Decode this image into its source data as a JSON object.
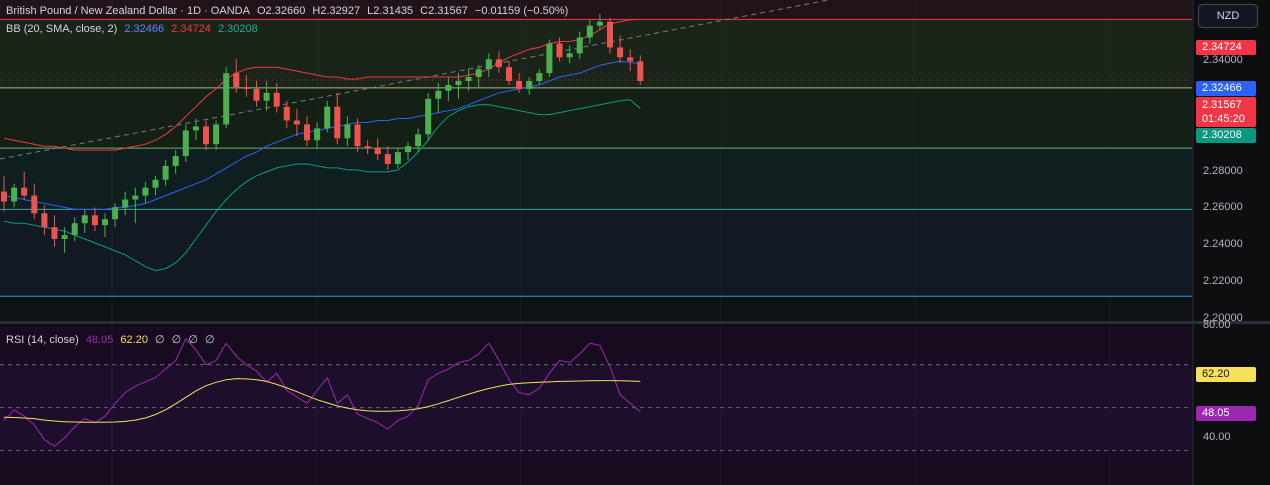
{
  "header": {
    "symbol_title": "British Pound / New Zealand Dollar · 1D · OANDA",
    "open": "O2.32660",
    "high": "H2.32927",
    "low": "L2.31435",
    "close": "C2.31567",
    "change": "−0.01159 (−0.50%)"
  },
  "bb_legend": {
    "label": "BB (20, SMA, close, 2)",
    "basis": "2.32466",
    "upper": "2.34724",
    "lower": "2.30208"
  },
  "rsi_legend": {
    "label": "RSI (14, close)",
    "rsi": "48.05",
    "ma": "62.20",
    "extra": [
      "∅",
      "∅",
      "∅",
      "∅"
    ]
  },
  "currency_button": "NZD",
  "price_axis": {
    "ticks": [
      "2.34000",
      "2.28000",
      "2.26000",
      "2.24000",
      "2.22000",
      "2.20000"
    ],
    "tags": {
      "upper": "2.34724",
      "basis": "2.32466",
      "last": "2.31567",
      "countdown": "01:45:20",
      "lower": "2.30208"
    }
  },
  "rsi_axis": {
    "ticks": [
      "80.00",
      "40.00"
    ],
    "tags": {
      "ma": "62.20",
      "rsi": "48.05"
    }
  },
  "colors": {
    "up": "#26a69a",
    "up_body": "#4caf50",
    "down": "#ef5350",
    "upper_band": "#f23645",
    "basis": "#2962ff",
    "lower_band": "#089981",
    "rsi": "#9c27b0",
    "rsi_ma": "#f5e05a"
  },
  "chart_data": [
    {
      "type": "candlestick",
      "title": "British Pound / New Zealand Dollar · 1D · OANDA",
      "ylim": [
        2.195,
        2.357
      ],
      "candles": [
        [
          2.26,
          2.268,
          2.25,
          2.255
        ],
        [
          2.255,
          2.264,
          2.252,
          2.262
        ],
        [
          2.262,
          2.27,
          2.256,
          2.258
        ],
        [
          2.258,
          2.264,
          2.246,
          2.249
        ],
        [
          2.249,
          2.253,
          2.238,
          2.242
        ],
        [
          2.242,
          2.248,
          2.232,
          2.236
        ],
        [
          2.236,
          2.242,
          2.229,
          2.238
        ],
        [
          2.238,
          2.247,
          2.235,
          2.244
        ],
        [
          2.244,
          2.251,
          2.239,
          2.248
        ],
        [
          2.248,
          2.252,
          2.24,
          2.243
        ],
        [
          2.243,
          2.249,
          2.237,
          2.246
        ],
        [
          2.246,
          2.254,
          2.242,
          2.252
        ],
        [
          2.252,
          2.26,
          2.248,
          2.256
        ],
        [
          2.256,
          2.262,
          2.244,
          2.258
        ],
        [
          2.258,
          2.265,
          2.254,
          2.262
        ],
        [
          2.262,
          2.268,
          2.258,
          2.266
        ],
        [
          2.266,
          2.276,
          2.263,
          2.273
        ],
        [
          2.273,
          2.281,
          2.269,
          2.278
        ],
        [
          2.278,
          2.294,
          2.275,
          2.291
        ],
        [
          2.291,
          2.297,
          2.286,
          2.293
        ],
        [
          2.293,
          2.296,
          2.281,
          2.284
        ],
        [
          2.284,
          2.296,
          2.281,
          2.294
        ],
        [
          2.294,
          2.323,
          2.292,
          2.32
        ],
        [
          2.32,
          2.327,
          2.31,
          2.313
        ],
        [
          2.313,
          2.319,
          2.308,
          2.312
        ],
        [
          2.312,
          2.316,
          2.303,
          2.306
        ],
        [
          2.306,
          2.316,
          2.301,
          2.31
        ],
        [
          2.31,
          2.315,
          2.3,
          2.303
        ],
        [
          2.303,
          2.306,
          2.292,
          2.296
        ],
        [
          2.296,
          2.302,
          2.288,
          2.294
        ],
        [
          2.294,
          2.298,
          2.283,
          2.286
        ],
        [
          2.286,
          2.295,
          2.282,
          2.292
        ],
        [
          2.292,
          2.306,
          2.29,
          2.303
        ],
        [
          2.303,
          2.31,
          2.284,
          2.287
        ],
        [
          2.287,
          2.298,
          2.283,
          2.294
        ],
        [
          2.294,
          2.297,
          2.28,
          2.283
        ],
        [
          2.283,
          2.286,
          2.279,
          2.282
        ],
        [
          2.282,
          2.287,
          2.276,
          2.279
        ],
        [
          2.279,
          2.283,
          2.271,
          2.274
        ],
        [
          2.274,
          2.282,
          2.272,
          2.28
        ],
        [
          2.28,
          2.285,
          2.276,
          2.283
        ],
        [
          2.283,
          2.292,
          2.28,
          2.289
        ],
        [
          2.289,
          2.31,
          2.286,
          2.307
        ],
        [
          2.307,
          2.315,
          2.3,
          2.311
        ],
        [
          2.311,
          2.318,
          2.306,
          2.314
        ],
        [
          2.314,
          2.32,
          2.307,
          2.316
        ],
        [
          2.316,
          2.322,
          2.311,
          2.318
        ],
        [
          2.318,
          2.324,
          2.313,
          2.322
        ],
        [
          2.322,
          2.33,
          2.318,
          2.327
        ],
        [
          2.327,
          2.331,
          2.32,
          2.323
        ],
        [
          2.323,
          2.326,
          2.314,
          2.316
        ],
        [
          2.316,
          2.32,
          2.31,
          2.312
        ],
        [
          2.312,
          2.318,
          2.309,
          2.316
        ],
        [
          2.316,
          2.322,
          2.314,
          2.32
        ],
        [
          2.32,
          2.337,
          2.318,
          2.335
        ],
        [
          2.335,
          2.338,
          2.326,
          2.328
        ],
        [
          2.328,
          2.334,
          2.325,
          2.33
        ],
        [
          2.33,
          2.341,
          2.327,
          2.338
        ],
        [
          2.338,
          2.347,
          2.335,
          2.344
        ],
        [
          2.344,
          2.35,
          2.342,
          2.346
        ],
        [
          2.346,
          2.348,
          2.33,
          2.333
        ],
        [
          2.333,
          2.339,
          2.325,
          2.328
        ],
        [
          2.328,
          2.332,
          2.321,
          2.326
        ],
        [
          2.326,
          2.329,
          2.314,
          2.316
        ]
      ],
      "bb_upper": [
        2.287,
        2.286,
        2.285,
        2.284,
        2.283,
        2.283,
        2.282,
        2.281,
        2.281,
        2.281,
        2.281,
        2.281,
        2.282,
        2.283,
        2.284,
        2.286,
        2.289,
        2.293,
        2.298,
        2.303,
        2.308,
        2.312,
        2.317,
        2.32,
        2.322,
        2.323,
        2.323,
        2.323,
        2.322,
        2.321,
        2.32,
        2.319,
        2.318,
        2.318,
        2.317,
        2.317,
        2.318,
        2.318,
        2.318,
        2.318,
        2.318,
        2.318,
        2.318,
        2.318,
        2.318,
        2.318,
        2.319,
        2.32,
        2.322,
        2.325,
        2.328,
        2.33,
        2.332,
        2.333,
        2.335,
        2.336,
        2.336,
        2.337,
        2.339,
        2.342,
        2.345,
        2.346,
        2.347,
        2.3472
      ],
      "bb_basis": [
        2.258,
        2.257,
        2.256,
        2.255,
        2.254,
        2.253,
        2.252,
        2.251,
        2.251,
        2.251,
        2.251,
        2.252,
        2.252,
        2.253,
        2.254,
        2.256,
        2.258,
        2.26,
        2.262,
        2.264,
        2.266,
        2.269,
        2.272,
        2.275,
        2.278,
        2.28,
        2.283,
        2.285,
        2.287,
        2.289,
        2.29,
        2.291,
        2.292,
        2.293,
        2.294,
        2.295,
        2.295,
        2.296,
        2.296,
        2.297,
        2.297,
        2.298,
        2.299,
        2.3,
        2.301,
        2.302,
        2.304,
        2.306,
        2.308,
        2.31,
        2.311,
        2.312,
        2.313,
        2.314,
        2.316,
        2.318,
        2.319,
        2.32,
        2.322,
        2.324,
        2.325,
        2.326,
        2.3255,
        2.32466
      ],
      "bb_lower": [
        2.245,
        2.244,
        2.244,
        2.243,
        2.242,
        2.241,
        2.24,
        2.238,
        2.236,
        2.234,
        2.232,
        2.23,
        2.228,
        2.225,
        2.222,
        2.22,
        2.221,
        2.224,
        2.229,
        2.236,
        2.243,
        2.25,
        2.256,
        2.261,
        2.265,
        2.268,
        2.27,
        2.272,
        2.273,
        2.274,
        2.274,
        2.273,
        2.272,
        2.272,
        2.271,
        2.271,
        2.27,
        2.27,
        2.27,
        2.271,
        2.275,
        2.28,
        2.286,
        2.293,
        2.298,
        2.301,
        2.303,
        2.304,
        2.304,
        2.303,
        2.302,
        2.301,
        2.3,
        2.299,
        2.299,
        2.3,
        2.301,
        2.302,
        2.303,
        2.304,
        2.305,
        2.306,
        2.3065,
        2.30208
      ]
    },
    {
      "type": "line",
      "title": "RSI (14, close)",
      "ylim": [
        14,
        88
      ],
      "series": [
        {
          "name": "RSI",
          "values": [
            44,
            49,
            46,
            42,
            35,
            32,
            36,
            41,
            45,
            43,
            46,
            52,
            57,
            60,
            62,
            64,
            68,
            72,
            82,
            77,
            70,
            72,
            80,
            74,
            70,
            67,
            62,
            66,
            58,
            55,
            52,
            58,
            64,
            52,
            56,
            47,
            45,
            43,
            40,
            44,
            46,
            51,
            63,
            66,
            68,
            71,
            72,
            75,
            80,
            72,
            63,
            57,
            56,
            59,
            66,
            72,
            71,
            75,
            80,
            79,
            69,
            56,
            52,
            48.05
          ]
        },
        {
          "name": "RSI MA",
          "values": [
            45.5,
            45.4,
            45.2,
            44.9,
            44.2,
            43.8,
            43.4,
            43.3,
            43.2,
            43.2,
            43.2,
            43.3,
            43.6,
            44.2,
            45.2,
            46.8,
            49.0,
            51.8,
            54.8,
            57.8,
            60.2,
            61.8,
            63.0,
            63.5,
            63.4,
            63.0,
            62.2,
            60.8,
            59.2,
            57.4,
            55.5,
            53.7,
            52.2,
            50.8,
            49.8,
            49.0,
            48.5,
            48.3,
            48.3,
            48.5,
            48.9,
            49.5,
            50.5,
            51.8,
            53.3,
            54.8,
            56.3,
            57.7,
            58.9,
            60.0,
            60.8,
            61.3,
            61.6,
            61.8,
            62.0,
            62.2,
            62.3,
            62.4,
            62.5,
            62.6,
            62.6,
            62.5,
            62.4,
            62.2
          ]
        }
      ],
      "bands": [
        70,
        50,
        30
      ]
    }
  ]
}
